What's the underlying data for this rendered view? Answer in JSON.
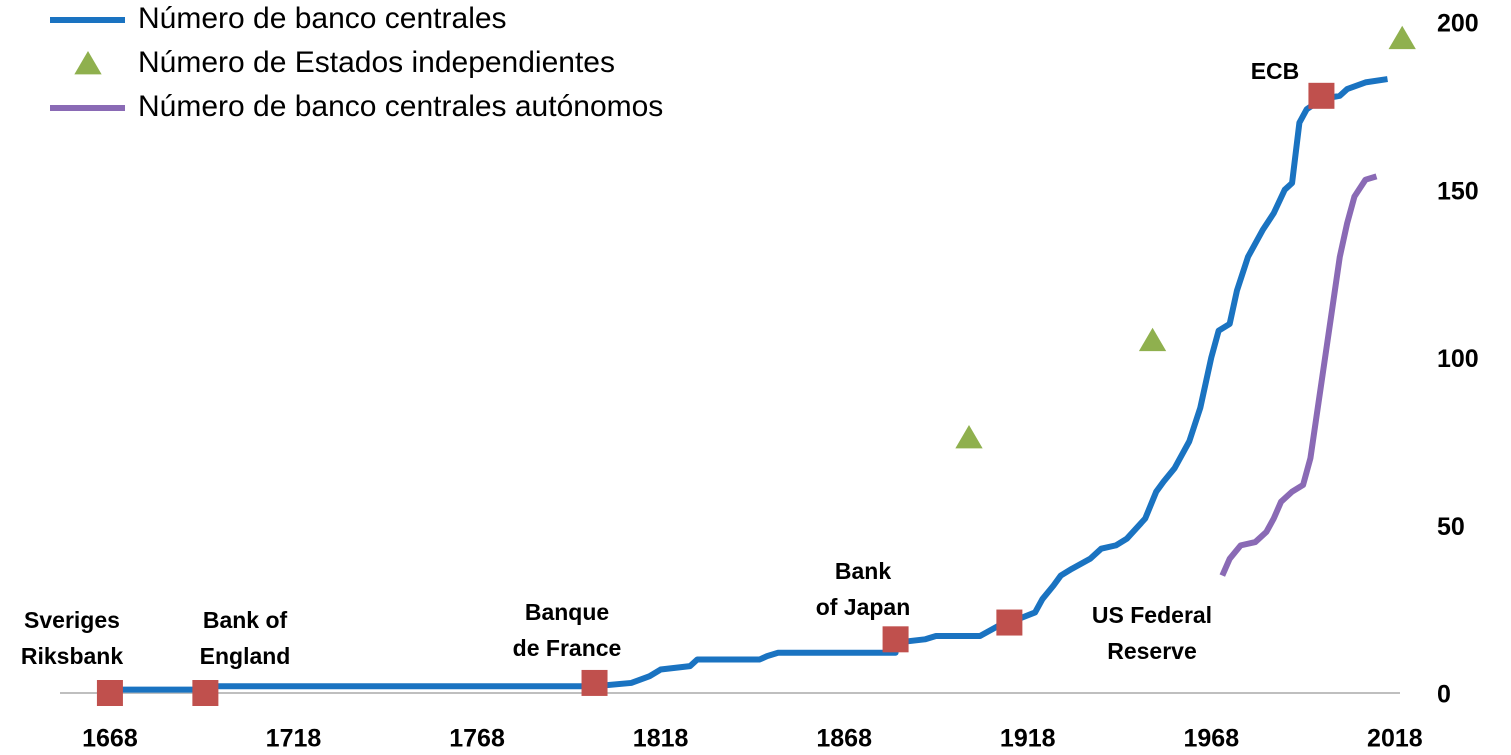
{
  "chart_data": {
    "type": "line",
    "xlim": [
      1654.4,
      2019.4
    ],
    "ylim": [
      0,
      200
    ],
    "xticks": [
      1668,
      1718,
      1768,
      1818,
      1868,
      1918,
      1968,
      2018
    ],
    "yticks": [
      0,
      50,
      100,
      150,
      200
    ],
    "series": [
      {
        "name": "Número de banco centrales",
        "color": "#1a73c1",
        "style": "line",
        "x": [
          1668,
          1694,
          1694,
          1800,
          1810,
          1815,
          1818,
          1826,
          1828,
          1845,
          1847,
          1850,
          1882,
          1882,
          1890,
          1893,
          1905,
          1910,
          1913,
          1920,
          1922,
          1925,
          1927,
          1930,
          1935,
          1938,
          1942,
          1945,
          1950,
          1953,
          1955,
          1958,
          1962,
          1965,
          1968,
          1970,
          1973,
          1975,
          1978,
          1982,
          1985,
          1988,
          1990,
          1992,
          1994,
          1998,
          2003,
          2005,
          2010,
          2016
        ],
        "values": [
          1,
          1,
          2,
          2,
          3,
          5,
          7,
          8,
          10,
          10,
          11,
          12,
          12,
          15,
          16,
          17,
          17,
          20,
          21,
          24,
          28,
          32,
          35,
          37,
          40,
          43,
          44,
          46,
          52,
          60,
          63,
          67,
          75,
          85,
          100,
          108,
          110,
          120,
          130,
          138,
          143,
          150,
          152,
          170,
          174,
          177,
          178,
          180,
          182,
          183
        ]
      },
      {
        "name": "Número de Estados independientes",
        "color": "#8fb04e",
        "style": "triangle",
        "x": [
          1902,
          1952,
          2020
        ],
        "values": [
          76,
          105,
          195
        ]
      },
      {
        "name": "Número de banco centrales autónomos",
        "color": "#8a6ab5",
        "style": "line",
        "x": [
          1971,
          1973,
          1976,
          1980,
          1983,
          1985,
          1987,
          1990,
          1993,
          1995,
          1997,
          1999,
          2001,
          2003,
          2005,
          2007,
          2010,
          2013
        ],
        "values": [
          35,
          40,
          44,
          45,
          48,
          52,
          57,
          60,
          62,
          70,
          85,
          100,
          115,
          130,
          140,
          148,
          153,
          154
        ]
      }
    ],
    "annotation_color": "#c0504d",
    "annotations": [
      {
        "lines": [
          "Sveriges",
          "Riksbank"
        ],
        "x": 1668,
        "y": 0
      },
      {
        "lines": [
          "Bank of",
          "England"
        ],
        "x": 1694,
        "y": 0
      },
      {
        "lines": [
          "Banque",
          "de France"
        ],
        "x": 1800,
        "y": 3
      },
      {
        "lines": [
          "Bank",
          "of Japan"
        ],
        "x": 1882,
        "y": 16
      },
      {
        "lines": [
          "US Federal",
          "Reserve"
        ],
        "x": 1913,
        "y": 21
      },
      {
        "lines": [
          "ECB"
        ],
        "x": 1998,
        "y": 178
      }
    ]
  }
}
